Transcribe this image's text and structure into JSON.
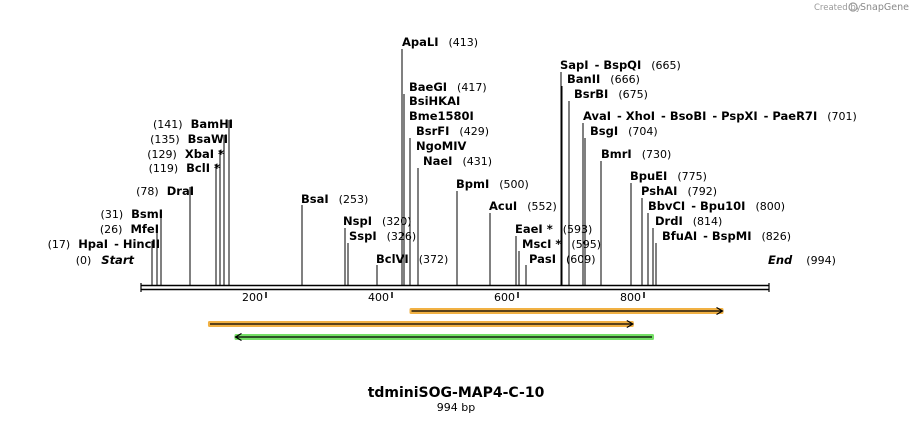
{
  "credit": {
    "prefix": "Created by",
    "brand": "SnapGene"
  },
  "sequence": {
    "name": "tdminiSOG-MAP4-C-10",
    "length_label": "994 bp",
    "length": 994
  },
  "ends": {
    "start": "Start",
    "start_pos": "(0)",
    "end": "End",
    "end_pos": "(994)"
  },
  "ruler": {
    "ticks": [
      "200",
      "400",
      "600",
      "800"
    ]
  },
  "sites": [
    {
      "pos": "(17)",
      "names": [
        "HpaI",
        "HincII"
      ]
    },
    {
      "pos": "(26)",
      "names": [
        "MfeI"
      ]
    },
    {
      "pos": "(31)",
      "names": [
        "BsmI"
      ]
    },
    {
      "pos": "(78)",
      "names": [
        "DraI"
      ]
    },
    {
      "pos": "(119)",
      "names": [
        "BclI *"
      ]
    },
    {
      "pos": "(129)",
      "names": [
        "XbaI *"
      ]
    },
    {
      "pos": "(135)",
      "names": [
        "BsaWI"
      ]
    },
    {
      "pos": "(141)",
      "names": [
        "BamHI"
      ]
    },
    {
      "pos": "(253)",
      "names": [
        "BsaI"
      ]
    },
    {
      "pos": "(320)",
      "names": [
        "NspI"
      ]
    },
    {
      "pos": "(326)",
      "names": [
        "SspI"
      ]
    },
    {
      "pos": "(372)",
      "names": [
        "BclVI"
      ]
    },
    {
      "pos": "(413)",
      "names": [
        "ApaLI"
      ]
    },
    {
      "pos": "(417)",
      "names": [
        "BaeGI"
      ]
    },
    {
      "pos": "",
      "names": [
        "BsiHKAI"
      ]
    },
    {
      "pos": "",
      "names": [
        "Bme1580I"
      ]
    },
    {
      "pos": "(429)",
      "names": [
        "BsrFI"
      ]
    },
    {
      "pos": "",
      "names": [
        "NgoMIV"
      ]
    },
    {
      "pos": "(431)",
      "names": [
        "NaeI"
      ]
    },
    {
      "pos": "(500)",
      "names": [
        "BpmI"
      ]
    },
    {
      "pos": "(552)",
      "names": [
        "AcuI"
      ]
    },
    {
      "pos": "(593)",
      "names": [
        "EaeI *"
      ]
    },
    {
      "pos": "(595)",
      "names": [
        "MscI *"
      ]
    },
    {
      "pos": "(609)",
      "names": [
        "PasI"
      ]
    },
    {
      "pos": "(665)",
      "names": [
        "SapI",
        "BspQI"
      ]
    },
    {
      "pos": "(666)",
      "names": [
        "BanII"
      ]
    },
    {
      "pos": "(675)",
      "names": [
        "BsrBI"
      ]
    },
    {
      "pos": "(701)",
      "names": [
        "AvaI",
        "XhoI",
        "BsoBI",
        "PspXI",
        "PaeR7I"
      ]
    },
    {
      "pos": "(704)",
      "names": [
        "BsgI"
      ]
    },
    {
      "pos": "(730)",
      "names": [
        "BmrI"
      ]
    },
    {
      "pos": "(775)",
      "names": [
        "BpuEI"
      ]
    },
    {
      "pos": "(792)",
      "names": [
        "PshAI"
      ]
    },
    {
      "pos": "(800)",
      "names": [
        "BbvCI",
        "Bpu10I"
      ]
    },
    {
      "pos": "(814)",
      "names": [
        "DrdI"
      ]
    },
    {
      "pos": "(826)",
      "names": [
        "BfuAI",
        "BspMI"
      ]
    }
  ],
  "features": [
    {
      "direction": "forward",
      "color": "#f0a830",
      "start": 425,
      "end": 922
    },
    {
      "direction": "forward",
      "color": "#f0a830",
      "start": 106,
      "end": 780
    },
    {
      "direction": "reverse",
      "color": "#66dd55",
      "start": 148,
      "end": 812
    }
  ]
}
